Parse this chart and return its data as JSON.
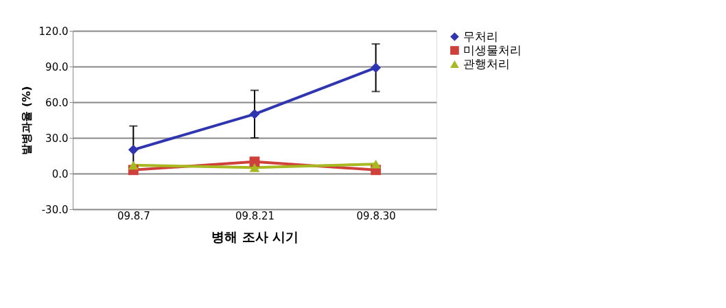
{
  "chart_data": {
    "type": "line",
    "xlabel": "병해 조사 시기",
    "ylabel": "발병과율 (%)",
    "categories": [
      "09.8.7",
      "09.8.21",
      "09.8.30"
    ],
    "ylim": [
      -30,
      120
    ],
    "yticks": [
      {
        "value": -30,
        "label": "-30.0"
      },
      {
        "value": 0,
        "label": "0.0"
      },
      {
        "value": 30,
        "label": "30.0"
      },
      {
        "value": 60,
        "label": "60.0"
      },
      {
        "value": 90,
        "label": "90.0"
      },
      {
        "value": 120,
        "label": "120.0"
      }
    ],
    "grid": "y",
    "legend": "right",
    "series": [
      {
        "name": "무처리",
        "color": "#2f35b0",
        "marker": "diamond",
        "values": [
          20,
          50,
          89
        ],
        "errors": [
          20,
          20,
          20
        ]
      },
      {
        "name": "미생물처리",
        "color": "#d0403a",
        "marker": "square",
        "values": [
          3,
          10,
          3
        ]
      },
      {
        "name": "관행처리",
        "color": "#a8b820",
        "marker": "triangle",
        "values": [
          7,
          5,
          8
        ]
      }
    ]
  }
}
